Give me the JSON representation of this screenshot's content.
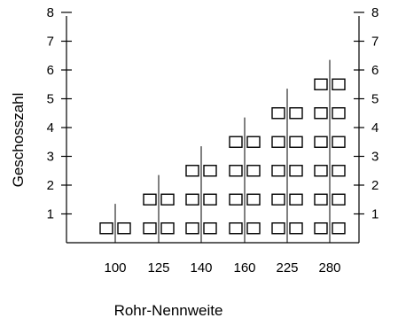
{
  "chart_data": {
    "type": "scatter",
    "categories": [
      "100",
      "125",
      "140",
      "160",
      "225",
      "280"
    ],
    "max_floors": [
      1,
      2,
      3,
      4,
      5,
      6
    ],
    "xlabel": "Rohr-Nennweite",
    "ylabel": "Geschosszahl",
    "ylim": [
      0,
      8
    ],
    "y_ticks": [
      1,
      2,
      3,
      4,
      5,
      6,
      7,
      8
    ],
    "y_tick_labels": [
      "1",
      "2",
      "3",
      "4",
      "5",
      "6",
      "7",
      "8"
    ],
    "right_axis_mirrored": true,
    "grid": false,
    "legend": "none"
  }
}
